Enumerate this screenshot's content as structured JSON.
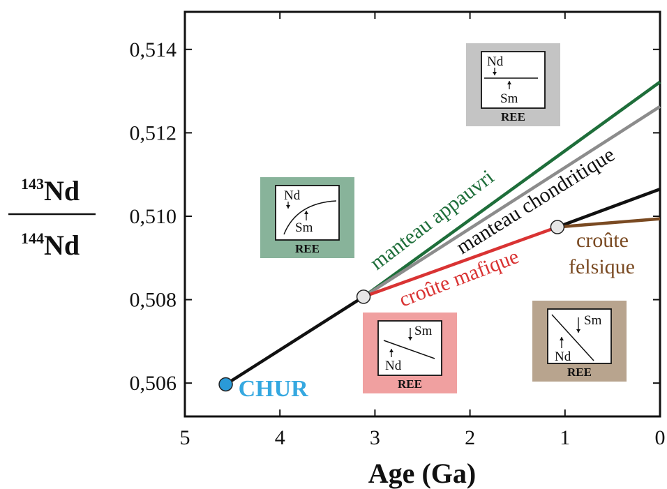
{
  "chart_data": {
    "type": "line",
    "xlabel": "Age (Ga)",
    "ylabel": {
      "top_mass": "143",
      "top_element": "Nd",
      "bottom_mass": "144",
      "bottom_element": "Nd"
    },
    "xlim": [
      5,
      0
    ],
    "ylim": [
      0.5052,
      0.5149
    ],
    "x_ticks": [
      5,
      4,
      3,
      2,
      1,
      0
    ],
    "x_tick_labels": [
      "5",
      "4",
      "3",
      "2",
      "1",
      "0"
    ],
    "y_ticks": [
      0.506,
      0.508,
      0.51,
      0.512,
      0.514
    ],
    "y_tick_labels": [
      "0,506",
      "0,508",
      "0,510",
      "0,512",
      "0,514"
    ],
    "grid": false,
    "series": [
      {
        "id": "chur_trunk",
        "color": "#111111",
        "points": [
          [
            4.57,
            0.50597
          ],
          [
            3.12,
            0.50807
          ]
        ]
      },
      {
        "id": "depleted_mantle",
        "name": "manteau appauvri",
        "color": "#1e6e3a",
        "points": [
          [
            3.12,
            0.50807
          ],
          [
            0.0,
            0.51322
          ]
        ]
      },
      {
        "id": "chondritic_mantle",
        "name": "manteau chondritique",
        "color": "#8c8c8c",
        "points": [
          [
            3.12,
            0.50807
          ],
          [
            0.0,
            0.51263
          ]
        ]
      },
      {
        "id": "mafic_crust",
        "name": "croûte mafique",
        "color": "#d93333",
        "points": [
          [
            3.12,
            0.50807
          ],
          [
            1.08,
            0.50974
          ]
        ]
      },
      {
        "id": "mafic_continuation",
        "color": "#111111",
        "points": [
          [
            1.08,
            0.50974
          ],
          [
            0.0,
            0.51065
          ]
        ]
      },
      {
        "id": "felsic_crust",
        "name": "croûte felsique",
        "color": "#7a4a22",
        "points": [
          [
            1.08,
            0.50974
          ],
          [
            0.0,
            0.50994
          ]
        ]
      }
    ],
    "markers": [
      {
        "id": "chur_point",
        "label": "CHUR",
        "x": 4.57,
        "y": 0.50597,
        "color": "#2a9ad8",
        "label_color": "#35a8e0"
      },
      {
        "id": "branch_point_1",
        "x": 3.12,
        "y": 0.50807,
        "color": "#e6e6e6"
      },
      {
        "id": "branch_point_2",
        "x": 1.08,
        "y": 0.50974,
        "color": "#e6e6e6"
      }
    ],
    "annotations": [
      {
        "id": "label_depleted",
        "text": "manteau appauvri",
        "color": "#1e6e3a"
      },
      {
        "id": "label_chondritic",
        "text": "manteau chondritique",
        "color": "#111111"
      },
      {
        "id": "label_mafic",
        "text": "croûte mafique",
        "color": "#d93333"
      },
      {
        "id": "label_felsic_1",
        "text": "croûte",
        "color": "#7a4a22"
      },
      {
        "id": "label_felsic_2",
        "text": "felsique",
        "color": "#7a4a22"
      }
    ],
    "insets": [
      {
        "id": "inset_gray",
        "bg": "#c4c4c4",
        "top_label": "Nd",
        "bottom_label": "Sm",
        "footer": "REE",
        "pattern": "flat"
      },
      {
        "id": "inset_green",
        "bg": "#88b39a",
        "top_label": "Nd",
        "bottom_label": "Sm",
        "footer": "REE",
        "pattern": "concave"
      },
      {
        "id": "inset_red",
        "bg": "#f0a0a0",
        "top_label": "Sm",
        "bottom_label": "Nd",
        "footer": "REE",
        "pattern": "falling"
      },
      {
        "id": "inset_brown",
        "bg": "#b8a48e",
        "top_label": "Sm",
        "bottom_label": "Nd",
        "footer": "REE",
        "pattern": "steep"
      }
    ]
  }
}
